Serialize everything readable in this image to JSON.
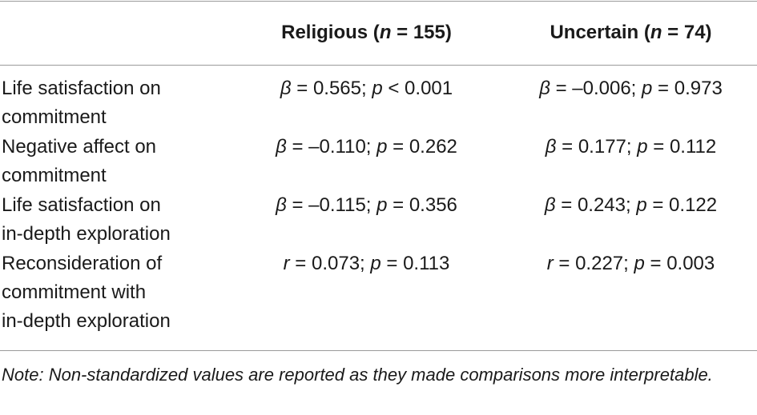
{
  "table": {
    "columns": [
      {
        "label": "Religious",
        "n_label": "n",
        "n_text": " = 155)"
      },
      {
        "label": "Uncertain",
        "n_label": "n",
        "n_text": " = 74)"
      }
    ],
    "rows": [
      {
        "label_lines": [
          "Life satisfaction on",
          "commitment"
        ],
        "religious": {
          "sym": "β",
          "stat": " = 0.565; ",
          "p_sym": "p",
          "p_text": " < 0.001"
        },
        "uncertain": {
          "sym": "β",
          "stat": " = –0.006; ",
          "p_sym": "p",
          "p_text": " = 0.973"
        }
      },
      {
        "label_lines": [
          "Negative affect on",
          "commitment"
        ],
        "religious": {
          "sym": "β",
          "stat": " = –0.110; ",
          "p_sym": "p",
          "p_text": " = 0.262"
        },
        "uncertain": {
          "sym": "β",
          "stat": " = 0.177; ",
          "p_sym": "p",
          "p_text": " = 0.112"
        }
      },
      {
        "label_lines": [
          "Life satisfaction on",
          "in-depth exploration"
        ],
        "religious": {
          "sym": "β",
          "stat": " = –0.115; ",
          "p_sym": "p",
          "p_text": " = 0.356"
        },
        "uncertain": {
          "sym": "β",
          "stat": " = 0.243; ",
          "p_sym": "p",
          "p_text": " = 0.122"
        }
      },
      {
        "label_lines": [
          "Reconsideration of",
          "commitment with",
          "in-depth exploration"
        ],
        "religious": {
          "sym": "r",
          "stat": " = 0.073; ",
          "p_sym": "p",
          "p_text": " = 0.113"
        },
        "uncertain": {
          "sym": "r",
          "stat": " = 0.227; ",
          "p_sym": "p",
          "p_text": " = 0.003"
        }
      }
    ],
    "note": "Note: Non-standardized values are reported as they made comparisons more interpretable."
  }
}
